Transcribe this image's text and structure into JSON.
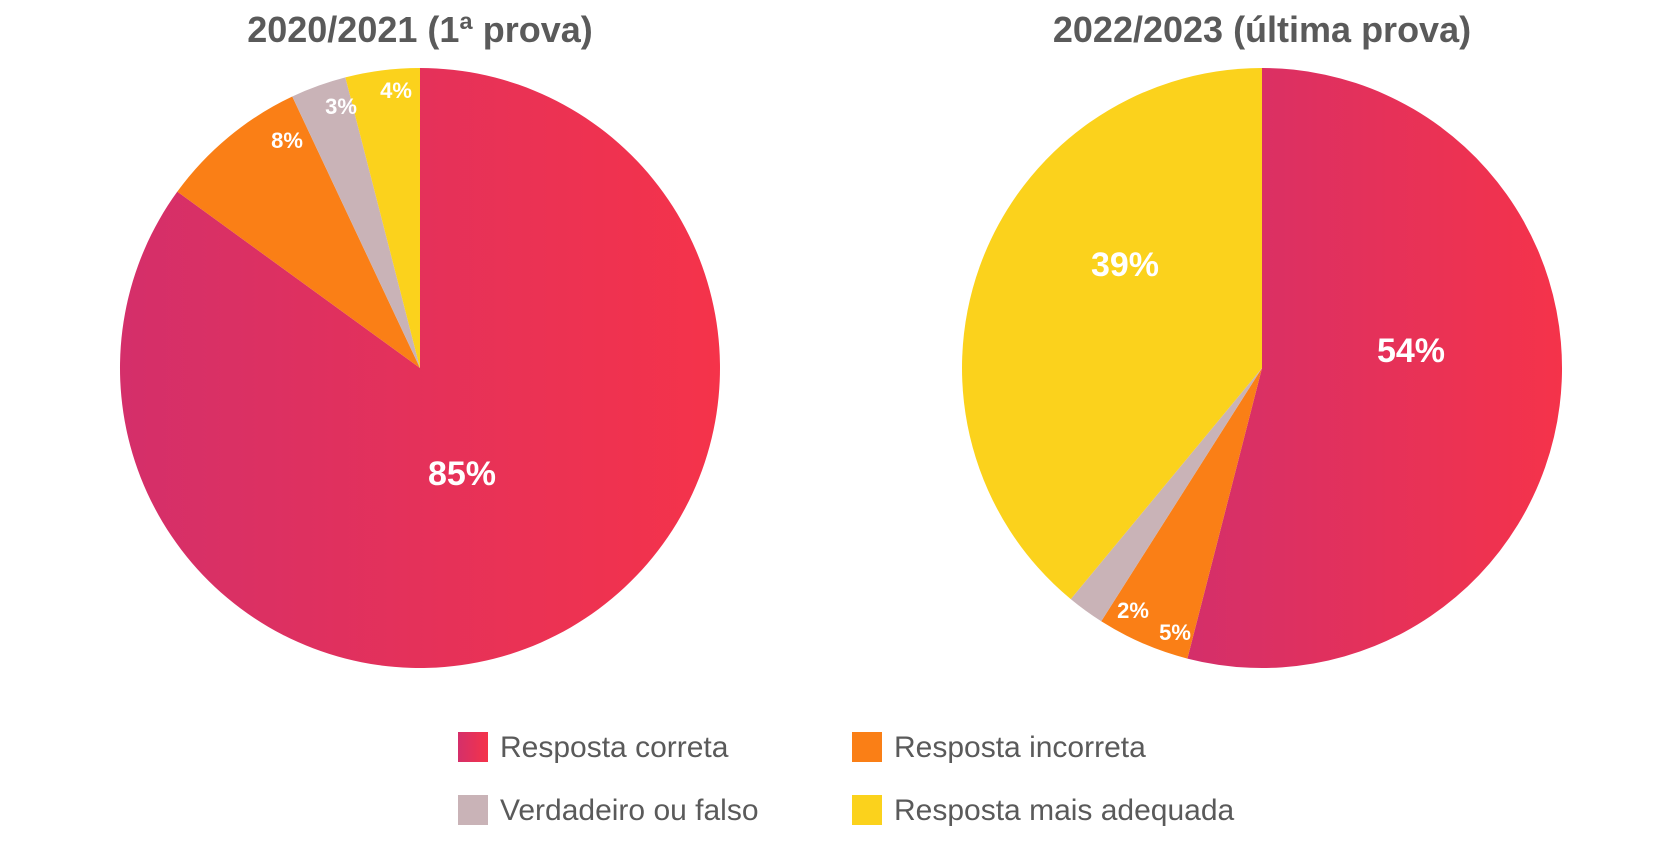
{
  "chart_data": [
    {
      "type": "pie",
      "title": "2020/2021 (1ª prova)",
      "slices": [
        {
          "category": "Resposta correta",
          "value": 85,
          "label": "85%"
        },
        {
          "category": "Resposta incorreta",
          "value": 8,
          "label": "8%"
        },
        {
          "category": "Verdadeiro ou falso",
          "value": 3,
          "label": "3%"
        },
        {
          "category": "Resposta mais adequada",
          "value": 4,
          "label": "4%"
        }
      ]
    },
    {
      "type": "pie",
      "title": "2022/2023 (última prova)",
      "slices": [
        {
          "category": "Resposta correta",
          "value": 54,
          "label": "54%"
        },
        {
          "category": "Resposta incorreta",
          "value": 5,
          "label": "5%"
        },
        {
          "category": "Verdadeiro ou falso",
          "value": 2,
          "label": "2%"
        },
        {
          "category": "Resposta mais adequada",
          "value": 39,
          "label": "39%"
        }
      ]
    }
  ],
  "legend": {
    "placement": "bottom-center",
    "items": [
      {
        "category": "Resposta correta",
        "label": "Resposta correta",
        "color": "#e8345a"
      },
      {
        "category": "Resposta incorreta",
        "label": "Resposta incorreta",
        "color": "#fa7f16"
      },
      {
        "category": "Verdadeiro ou falso",
        "label": "Verdadeiro ou falso",
        "color": "#c9b3b7"
      },
      {
        "category": "Resposta mais adequada",
        "label": "Resposta mais adequada",
        "color": "#fbd21c"
      }
    ]
  },
  "colors": {
    "correta_gradient_start": "#d42f6a",
    "correta_gradient_end": "#f5334a",
    "incorreta": "#fa7f16",
    "verdadeiro": "#c9b3b7",
    "adequada": "#fbd21c",
    "title_text": "#5a5a5a",
    "legend_text": "#5a5a5a",
    "slice_label_text": "#ffffff"
  }
}
